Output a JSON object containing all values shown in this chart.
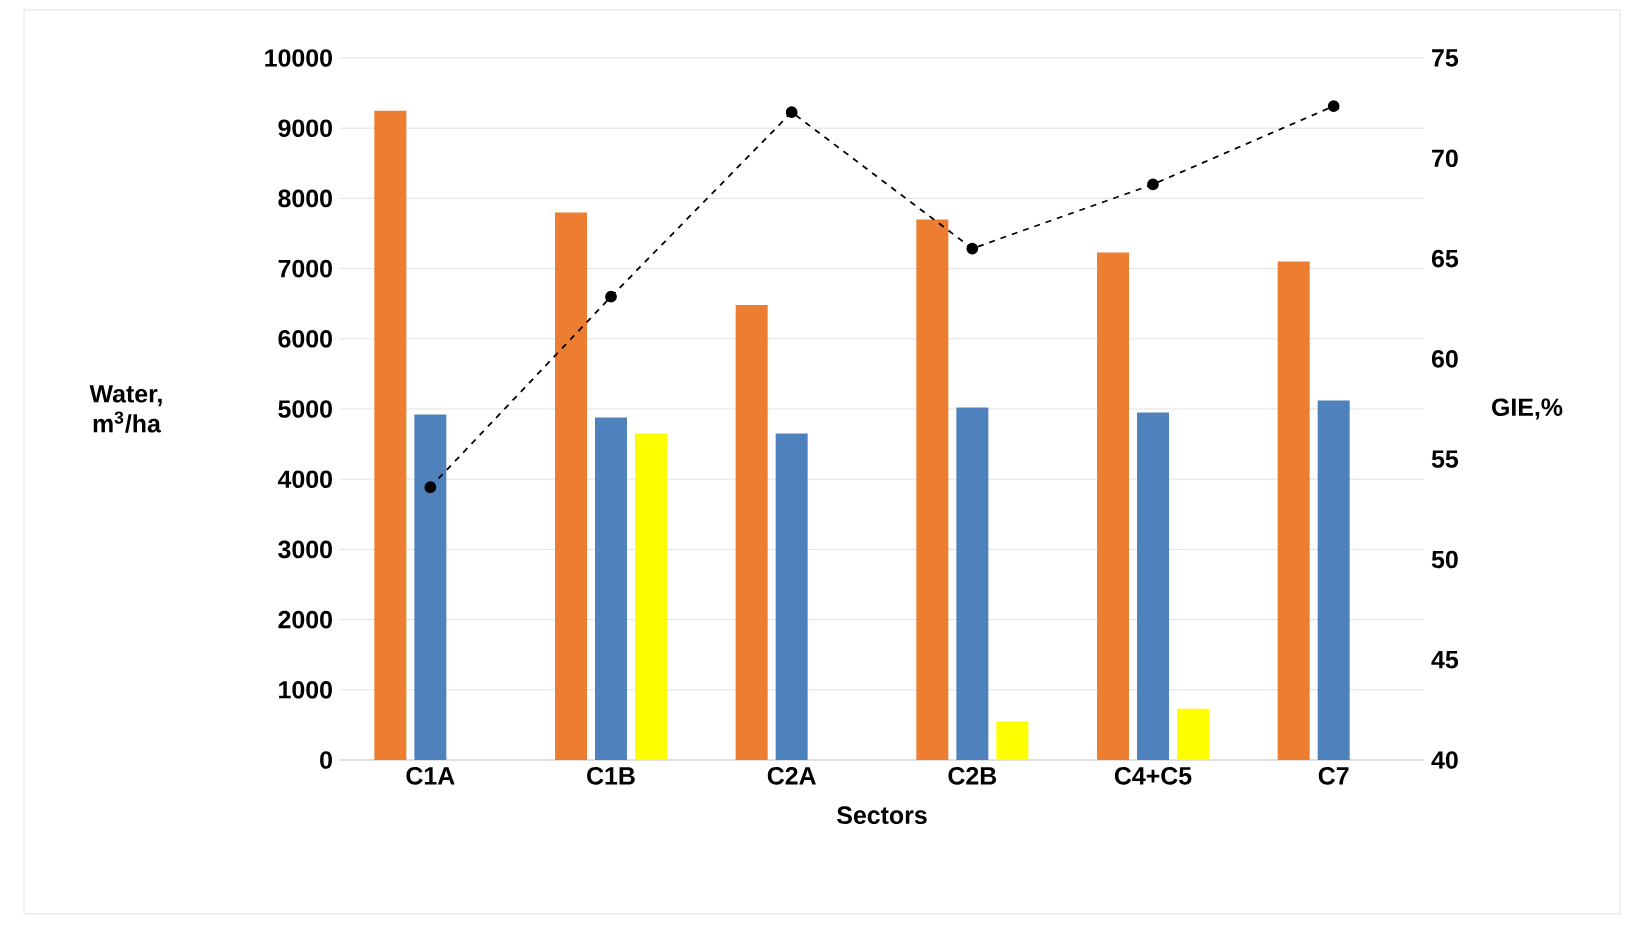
{
  "chart_data": {
    "type": "bar",
    "xlabel": "Sectors",
    "ylabel": "Water, m$^{3}$/ha",
    "y2label": "GIE,%",
    "categories": [
      "C1A",
      "C1B",
      "C2A",
      "C2B",
      "C4+C5",
      "C7"
    ],
    "series": [
      {
        "color": "#ed7d31",
        "values": [
          9250,
          7800,
          6480,
          7700,
          7230,
          7100
        ]
      },
      {
        "color": "#4f81bd",
        "values": [
          4920,
          4880,
          4650,
          5020,
          4950,
          5120
        ]
      },
      {
        "color": "#ffff00",
        "values": [
          null,
          4650,
          null,
          550,
          730,
          null
        ]
      },
      {
        "type": "line",
        "axis": "y2",
        "color": "#000000",
        "line_style": "dashed",
        "marker": "circle",
        "values": [
          53.6,
          63.1,
          72.3,
          65.5,
          68.7,
          72.6
        ]
      }
    ],
    "ylim": [
      0,
      10000
    ],
    "yticks": [
      0,
      1000,
      2000,
      3000,
      4000,
      5000,
      6000,
      7000,
      8000,
      9000,
      10000
    ],
    "y2lim": [
      40,
      75
    ],
    "y2ticks": [
      40,
      45,
      50,
      55,
      60,
      65,
      70,
      75
    ],
    "grid": "y"
  }
}
